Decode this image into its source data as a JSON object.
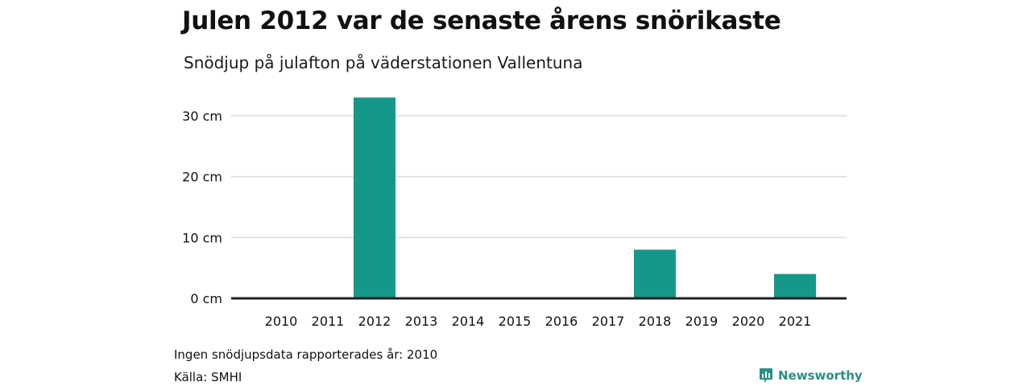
{
  "chart_data": {
    "type": "bar",
    "title": "Julen 2012 var de senaste årens snörikaste",
    "subtitle": "Snödjup på julafton på väderstationen Vallentuna",
    "categories": [
      "2010",
      "2011",
      "2012",
      "2013",
      "2014",
      "2015",
      "2016",
      "2017",
      "2018",
      "2019",
      "2020",
      "2021"
    ],
    "series": [
      {
        "values": [
          null,
          0,
          33,
          0,
          0,
          0,
          0,
          0,
          8,
          0,
          0,
          4
        ]
      }
    ],
    "ylim": [
      0,
      35
    ],
    "y_ticks": [
      0,
      10,
      20,
      30
    ],
    "y_tick_labels": [
      "0 cm",
      "10 cm",
      "20 cm",
      "30 cm"
    ],
    "grid": true,
    "bar_color": "#15978a"
  },
  "footer": {
    "note": "Ingen snödjupsdata rapporterades år: 2010",
    "source": "Källa: SMHI",
    "brand": "Newsworthy",
    "brand_icon": "newsworthy-logo-icon",
    "brand_color": "#2a8f84"
  }
}
